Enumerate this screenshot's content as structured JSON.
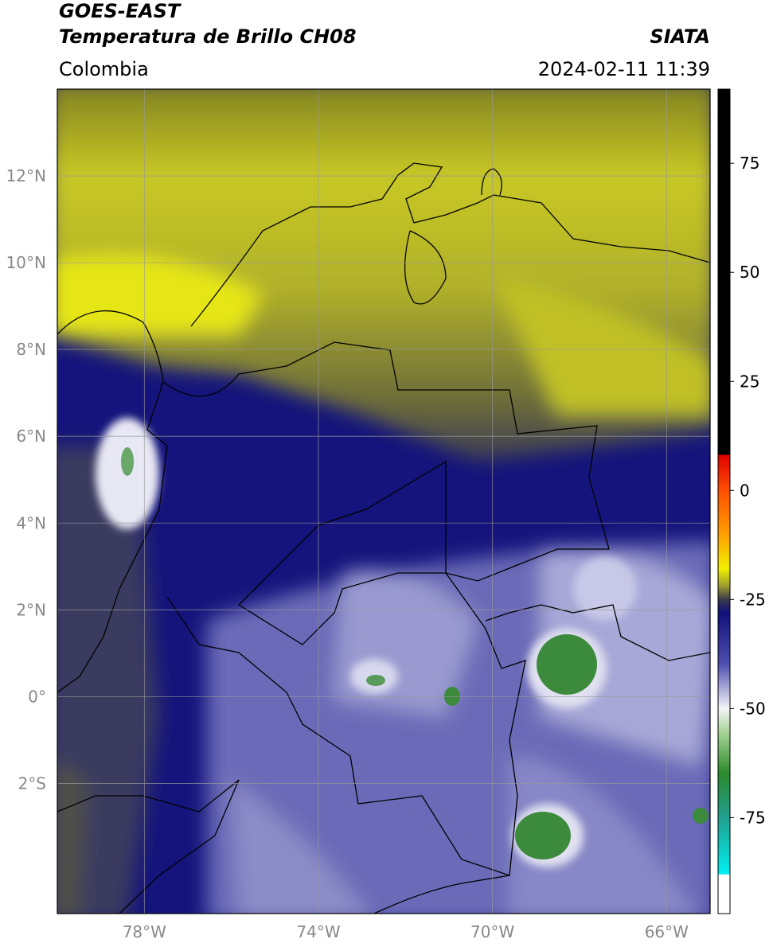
{
  "header": {
    "satellite": "GOES-EAST",
    "product": "Temperatura de Brillo CH08",
    "source": "SIATA",
    "region": "Colombia",
    "datetime": "2024-02-11 11:39"
  },
  "map": {
    "xlim": [
      -80,
      -65
    ],
    "ylim": [
      -5,
      14
    ],
    "xticks": [
      {
        "value": -78,
        "label": "78°W"
      },
      {
        "value": -74,
        "label": "74°W"
      },
      {
        "value": -70,
        "label": "70°W"
      },
      {
        "value": -66,
        "label": "66°W"
      }
    ],
    "yticks": [
      {
        "value": 12,
        "label": "12°N"
      },
      {
        "value": 10,
        "label": "10°N"
      },
      {
        "value": 8,
        "label": "8°N"
      },
      {
        "value": 6,
        "label": "6°N"
      },
      {
        "value": 4,
        "label": "4°N"
      },
      {
        "value": 2,
        "label": "2°N"
      },
      {
        "value": 0,
        "label": "0°"
      },
      {
        "value": -2,
        "label": "2°S"
      }
    ],
    "grid": true
  },
  "colorbar": {
    "lim": [
      -97,
      92
    ],
    "ticks": [
      75,
      50,
      25,
      0,
      -25,
      -50,
      -75
    ]
  }
}
